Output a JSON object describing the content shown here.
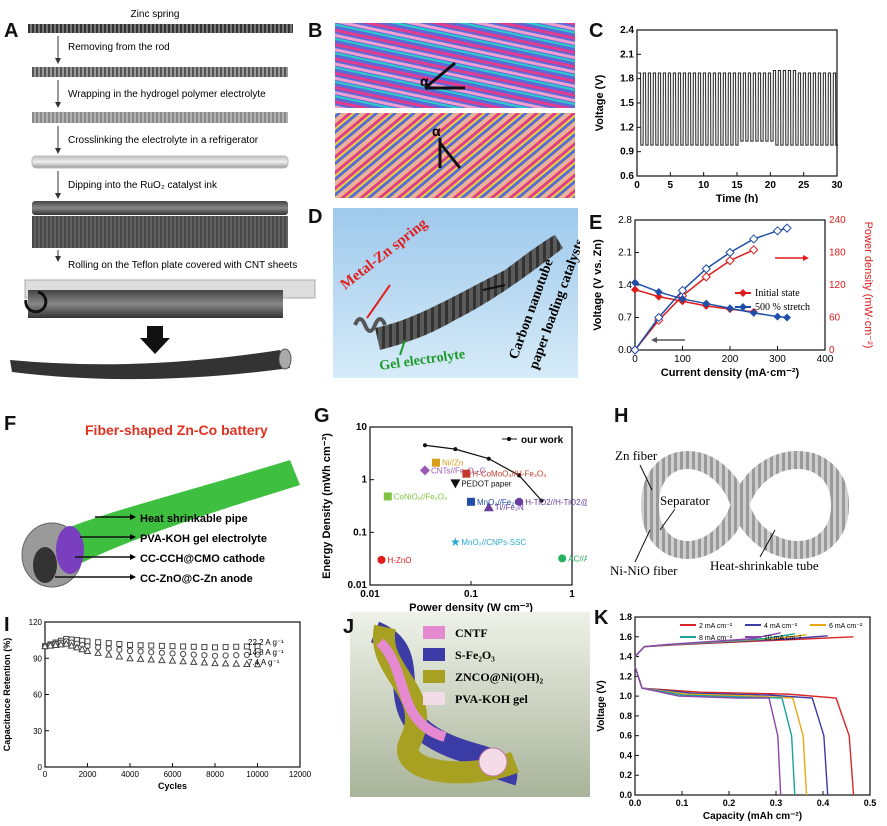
{
  "panel_labels": {
    "A": "A",
    "B": "B",
    "C": "C",
    "D": "D",
    "E": "E",
    "F": "F",
    "G": "G",
    "H": "H",
    "I": "I",
    "J": "J",
    "K": "K"
  },
  "panelA": {
    "steps": [
      "Zinc spring",
      "Removing from the rod",
      "Wrapping in the hydrogel polymer electrolyte",
      "Crosslinking the electrolyte in a refrigerator",
      "Dipping into the RuO₂ catalyst ink",
      "Rolling on the Teflon plate covered with CNT sheets"
    ]
  },
  "panelB": {
    "angle_label": "α"
  },
  "panelD": {
    "metal_zn": "Metal-Zn spring",
    "cnt_line1": "Carbon nanotube",
    "cnt_line2": "paper loading catalysts",
    "gel": "Gel electrolyte"
  },
  "panelF": {
    "title": "Fiber-shaped Zn-Co battery",
    "layers": [
      "Heat shrinkable pipe",
      "PVA-KOH gel electrolyte",
      "CC-CCH@CMO cathode",
      "CC-ZnO@C-Zn anode"
    ]
  },
  "panelH": {
    "zn_fiber": "Zn fiber",
    "separator": "Separator",
    "ni_fiber": "Ni-NiO fiber",
    "tube": "Heat-shrinkable tube"
  },
  "panelJ": {
    "legend": [
      {
        "label": "CNTF",
        "color": "#e58ad0"
      },
      {
        "label": "S-Fe₂O₃",
        "color": "#3c3ca6"
      },
      {
        "label": "ZNCO@Ni(OH)₂",
        "color": "#a8a020"
      },
      {
        "label": "PVA-KOH gel",
        "color": "#f3dbe8"
      }
    ]
  },
  "chart_data": [
    {
      "id": "C",
      "type": "line",
      "xlabel": "Time (h)",
      "ylabel": "Voltage (V)",
      "xlim": [
        0,
        30
      ],
      "ylim": [
        0.6,
        2.4
      ],
      "xticks": [
        "0",
        "5",
        "10",
        "15",
        "20",
        "25",
        "30"
      ],
      "yticks": [
        "0.6",
        "0.9",
        "1.2",
        "1.5",
        "1.8",
        "2.1",
        "2.4"
      ],
      "series": [
        {
          "cycle_period_h": 0.75,
          "charge_V": 1.87,
          "discharge_V": 0.98
        }
      ]
    },
    {
      "id": "E",
      "type": "line",
      "xlabel": "Current density (mA·cm⁻²)",
      "ylabel": "Voltage (V vs. Zn)",
      "y2label": "Power density (mW·cm⁻²)",
      "xlim": [
        0,
        400
      ],
      "ylim": [
        0,
        2.8
      ],
      "y2lim": [
        0,
        240
      ],
      "xticks": [
        "0",
        "100",
        "200",
        "300",
        "400"
      ],
      "yticks": [
        "0.0",
        "0.7",
        "1.4",
        "2.1",
        "2.8"
      ],
      "y2ticks": [
        "0",
        "60",
        "120",
        "180",
        "240"
      ],
      "series": [
        {
          "name": "Initial state",
          "color": "#e01b1b",
          "voltage": [
            [
              0,
              1.3
            ],
            [
              50,
              1.15
            ],
            [
              100,
              1.05
            ],
            [
              150,
              0.95
            ],
            [
              200,
              0.88
            ],
            [
              250,
              0.82
            ]
          ],
          "power": [
            [
              0,
              0
            ],
            [
              50,
              55
            ],
            [
              100,
              100
            ],
            [
              150,
              135
            ],
            [
              200,
              165
            ],
            [
              250,
              185
            ]
          ]
        },
        {
          "name": "500 % stretch",
          "color": "#1f4fa8",
          "voltage": [
            [
              0,
              1.45
            ],
            [
              50,
              1.25
            ],
            [
              100,
              1.1
            ],
            [
              150,
              1.0
            ],
            [
              200,
              0.9
            ],
            [
              250,
              0.8
            ],
            [
              300,
              0.72
            ],
            [
              320,
              0.7
            ]
          ],
          "power": [
            [
              0,
              0
            ],
            [
              50,
              60
            ],
            [
              100,
              110
            ],
            [
              150,
              150
            ],
            [
              200,
              180
            ],
            [
              250,
              205
            ],
            [
              300,
              220
            ],
            [
              320,
              225
            ]
          ]
        }
      ]
    },
    {
      "id": "G",
      "type": "scatter",
      "xlabel": "Power density (W cm⁻³)",
      "ylabel": "Energy Density (mWh cm⁻³)",
      "xscale": "log",
      "yscale": "log",
      "xlim": [
        0.01,
        1
      ],
      "ylim": [
        0.01,
        10
      ],
      "xticks": [
        "0.01",
        "0.1",
        "1"
      ],
      "yticks": [
        "0.01",
        "0.1",
        "1",
        "10"
      ],
      "legend": "our work",
      "our_work": [
        [
          0.035,
          4.5
        ],
        [
          0.07,
          3.8
        ],
        [
          0.15,
          2.5
        ],
        [
          0.3,
          1.2
        ],
        [
          0.5,
          0.4
        ]
      ],
      "points": [
        {
          "label": "Ni//Zn",
          "x": 0.045,
          "y": 2.1,
          "color": "#d4a017",
          "shape": "square"
        },
        {
          "label": "CNTs//Fe₃O₄-C",
          "x": 0.035,
          "y": 1.5,
          "color": "#9b59b6",
          "shape": "diamond"
        },
        {
          "label": "H-CoMoO₄//H-Fe₂O₃",
          "x": 0.09,
          "y": 1.3,
          "color": "#c0392b",
          "shape": "square"
        },
        {
          "label": "PEDOT paper",
          "x": 0.07,
          "y": 0.85,
          "color": "#111111",
          "shape": "triangle-down"
        },
        {
          "label": "CoNiO₂//Fe₂O₃",
          "x": 0.015,
          "y": 0.48,
          "color": "#7dc241",
          "shape": "square"
        },
        {
          "label": "MnO₂//Fe₂O₃",
          "x": 0.1,
          "y": 0.38,
          "color": "#1f4fa8",
          "shape": "square"
        },
        {
          "label": "Ti//Fe₂N",
          "x": 0.15,
          "y": 0.3,
          "color": "#6a3d9a",
          "shape": "triangle"
        },
        {
          "label": "H-TiO2//H-TiO2@C",
          "x": 0.3,
          "y": 0.38,
          "color": "#6a3d9a",
          "shape": "circle"
        },
        {
          "label": "MnO₂//CNPs-SSC",
          "x": 0.07,
          "y": 0.065,
          "color": "#2aa9c9",
          "shape": "star"
        },
        {
          "label": "H-ZnO",
          "x": 0.013,
          "y": 0.03,
          "color": "#e01b1b",
          "shape": "circle"
        },
        {
          "label": "AC//AC",
          "x": 0.8,
          "y": 0.032,
          "color": "#27ae60",
          "shape": "circle"
        }
      ]
    },
    {
      "id": "I",
      "type": "line",
      "xlabel": "Cycles",
      "ylabel": "Capacitance Retention (%)",
      "xlim": [
        0,
        12000
      ],
      "ylim": [
        0,
        120
      ],
      "xticks": [
        "0",
        "2000",
        "4000",
        "6000",
        "8000",
        "10000",
        "12000"
      ],
      "yticks": [
        "0",
        "30",
        "60",
        "90",
        "120"
      ],
      "series": [
        {
          "name": "22.2 A g⁻¹",
          "values": [
            [
              0,
              100
            ],
            [
              1000,
              106
            ],
            [
              2000,
              104
            ],
            [
              4000,
              101
            ],
            [
              6000,
              100
            ],
            [
              8000,
              99
            ],
            [
              10000,
              100
            ]
          ]
        },
        {
          "name": "14.8 A g⁻¹",
          "values": [
            [
              0,
              100
            ],
            [
              1000,
              104
            ],
            [
              2000,
              100
            ],
            [
              4000,
              96
            ],
            [
              6000,
              94
            ],
            [
              8000,
              92
            ],
            [
              10000,
              93
            ]
          ]
        },
        {
          "name": "7.4 A g⁻¹",
          "values": [
            [
              0,
              100
            ],
            [
              1000,
              102
            ],
            [
              2000,
              96
            ],
            [
              4000,
              90
            ],
            [
              6000,
              88
            ],
            [
              8000,
              86
            ],
            [
              10000,
              85
            ]
          ]
        }
      ]
    },
    {
      "id": "K",
      "type": "line",
      "xlabel": "Capacity (mAh cm⁻²)",
      "ylabel": "Voltage (V)",
      "xlim": [
        0,
        0.5
      ],
      "ylim": [
        0,
        1.8
      ],
      "xticks": [
        "0.0",
        "0.1",
        "0.2",
        "0.3",
        "0.4",
        "0.5"
      ],
      "yticks": [
        "0.0",
        "0.2",
        "0.4",
        "0.6",
        "0.8",
        "1.0",
        "1.2",
        "1.4",
        "1.6",
        "1.8"
      ],
      "series": [
        {
          "name": "2 mA cm⁻²",
          "color": "#d62728",
          "capacity": 0.465
        },
        {
          "name": "4 mA cm⁻²",
          "color": "#3c3ca6",
          "capacity": 0.41
        },
        {
          "name": "6 mA cm⁻²",
          "color": "#e6a817",
          "capacity": 0.365
        },
        {
          "name": "8 mA cm⁻²",
          "color": "#1aa39a",
          "capacity": 0.34
        },
        {
          "name": "10 mA cm⁻²",
          "color": "#8e44ad",
          "capacity": 0.31
        }
      ]
    }
  ]
}
